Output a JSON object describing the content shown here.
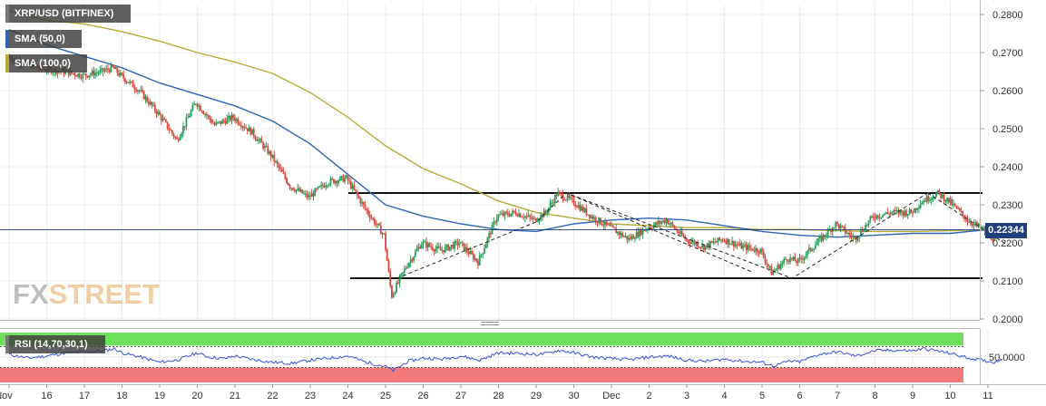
{
  "legend": {
    "pair": "XRP/USD (BITFINEX)",
    "sma50": "SMA (50,0)",
    "sma100": "SMA (100,0)",
    "rsi": "RSI (14,70,30,1)"
  },
  "colors": {
    "bull": "#2a9e5a",
    "bear": "#d94b3f",
    "sma50": "#2f64b4",
    "sma100": "#b6ab35",
    "rsi_line": "#3a52d8",
    "rsi_overbought": "#6de05c",
    "rsi_oversold": "#f07a7a",
    "last_price": "#1e3f7a"
  },
  "watermark": {
    "part1": "FX",
    "part2": "STREET"
  },
  "last_price_label": "0.22344",
  "chart_data": {
    "type": "candlestick",
    "title": "XRP/USD (BITFINEX)",
    "ylim": [
      0.2,
      0.282
    ],
    "y_ticks": [
      "0.2800",
      "0.2700",
      "0.2600",
      "0.2500",
      "0.2400",
      "0.2300",
      "0.2200",
      "0.2100",
      "0.2000"
    ],
    "x_ticks": [
      "Nov",
      "16",
      "17",
      "18",
      "19",
      "20",
      "21",
      "22",
      "23",
      "24",
      "25",
      "26",
      "27",
      "28",
      "29",
      "30",
      "Dec",
      "2",
      "3",
      "4",
      "5",
      "6",
      "7",
      "8",
      "9",
      "10",
      "11"
    ],
    "last_price": 0.22344,
    "price_path": [
      [
        15.0,
        0.269
      ],
      [
        15.8,
        0.266
      ],
      [
        16.5,
        0.265
      ],
      [
        17.0,
        0.264
      ],
      [
        17.5,
        0.265
      ],
      [
        17.8,
        0.266
      ],
      [
        18.0,
        0.264
      ],
      [
        18.5,
        0.26
      ],
      [
        19.0,
        0.254
      ],
      [
        19.5,
        0.247
      ],
      [
        20.0,
        0.257
      ],
      [
        20.5,
        0.251
      ],
      [
        21.0,
        0.253
      ],
      [
        21.5,
        0.249
      ],
      [
        22.0,
        0.243
      ],
      [
        22.5,
        0.235
      ],
      [
        23.0,
        0.232
      ],
      [
        23.5,
        0.236
      ],
      [
        24.0,
        0.237
      ],
      [
        24.5,
        0.229
      ],
      [
        25.0,
        0.222
      ],
      [
        25.2,
        0.206
      ],
      [
        25.6,
        0.214
      ],
      [
        26.0,
        0.22
      ],
      [
        26.5,
        0.218
      ],
      [
        27.0,
        0.22
      ],
      [
        27.5,
        0.215
      ],
      [
        28.0,
        0.227
      ],
      [
        28.5,
        0.228
      ],
      [
        29.0,
        0.226
      ],
      [
        29.3,
        0.228
      ],
      [
        29.6,
        0.233
      ],
      [
        30.0,
        0.231
      ],
      [
        30.5,
        0.227
      ],
      [
        31.0,
        0.224
      ],
      [
        31.5,
        0.221
      ],
      [
        32.0,
        0.224
      ],
      [
        32.5,
        0.226
      ],
      [
        33.0,
        0.221
      ],
      [
        33.5,
        0.219
      ],
      [
        34.0,
        0.221
      ],
      [
        34.5,
        0.219
      ],
      [
        35.0,
        0.218
      ],
      [
        35.3,
        0.212
      ],
      [
        35.7,
        0.216
      ],
      [
        36.0,
        0.215
      ],
      [
        36.5,
        0.22
      ],
      [
        37.0,
        0.225
      ],
      [
        37.5,
        0.221
      ],
      [
        38.0,
        0.227
      ],
      [
        38.5,
        0.228
      ],
      [
        39.0,
        0.228
      ],
      [
        39.3,
        0.231
      ],
      [
        39.7,
        0.233
      ],
      [
        40.0,
        0.231
      ],
      [
        40.5,
        0.226
      ],
      [
        41.0,
        0.223
      ],
      [
        41.2,
        0.221
      ],
      [
        41.4,
        0.2234
      ]
    ],
    "sma50": [
      [
        15.0,
        0.276
      ],
      [
        16.0,
        0.272
      ],
      [
        17.0,
        0.269
      ],
      [
        18.0,
        0.266
      ],
      [
        19.0,
        0.262
      ],
      [
        20.0,
        0.259
      ],
      [
        21.0,
        0.256
      ],
      [
        22.0,
        0.252
      ],
      [
        23.0,
        0.246
      ],
      [
        24.0,
        0.238
      ],
      [
        25.0,
        0.23
      ],
      [
        26.0,
        0.227
      ],
      [
        27.0,
        0.225
      ],
      [
        28.0,
        0.2235
      ],
      [
        29.0,
        0.223
      ],
      [
        30.0,
        0.225
      ],
      [
        31.0,
        0.226
      ],
      [
        32.0,
        0.2265
      ],
      [
        33.0,
        0.226
      ],
      [
        34.0,
        0.2245
      ],
      [
        35.0,
        0.223
      ],
      [
        36.0,
        0.222
      ],
      [
        37.0,
        0.2215
      ],
      [
        38.0,
        0.222
      ],
      [
        39.0,
        0.2225
      ],
      [
        40.0,
        0.2225
      ],
      [
        41.0,
        0.2235
      ],
      [
        41.4,
        0.224
      ]
    ],
    "sma100": [
      [
        15.0,
        0.281
      ],
      [
        16.0,
        0.2785
      ],
      [
        17.0,
        0.2775
      ],
      [
        18.0,
        0.2755
      ],
      [
        19.0,
        0.273
      ],
      [
        20.0,
        0.27
      ],
      [
        21.0,
        0.2675
      ],
      [
        22.0,
        0.2645
      ],
      [
        23.0,
        0.2595
      ],
      [
        24.0,
        0.253
      ],
      [
        25.0,
        0.2455
      ],
      [
        26.0,
        0.2395
      ],
      [
        27.0,
        0.2355
      ],
      [
        28.0,
        0.231
      ],
      [
        29.0,
        0.228
      ],
      [
        30.0,
        0.2265
      ],
      [
        31.0,
        0.225
      ],
      [
        32.0,
        0.2245
      ],
      [
        33.0,
        0.224
      ],
      [
        34.0,
        0.224
      ],
      [
        35.0,
        0.2235
      ],
      [
        36.0,
        0.2235
      ],
      [
        37.0,
        0.2232
      ],
      [
        38.0,
        0.223
      ],
      [
        39.0,
        0.223
      ],
      [
        40.0,
        0.2232
      ],
      [
        41.0,
        0.2234
      ],
      [
        41.4,
        0.2235
      ]
    ],
    "support_level": 0.2107,
    "resistance_level": 0.2331,
    "trend_lines": [
      [
        [
          25.3,
          0.2107
        ],
        [
          29.0,
          0.2255
        ],
        [
          29.8,
          0.2331
        ],
        [
          35.8,
          0.2107
        ],
        [
          39.4,
          0.2331
        ]
      ],
      [
        [
          29.8,
          0.2331
        ],
        [
          34.7,
          0.2125
        ]
      ],
      [
        [
          39.4,
          0.2331
        ],
        [
          41.5,
          0.2195
        ]
      ]
    ],
    "rsi": {
      "ylim": [
        0,
        100
      ],
      "overbought": 70,
      "oversold": 30,
      "tick": "50.0000",
      "path": [
        [
          15.0,
          55
        ],
        [
          15.5,
          48
        ],
        [
          16.0,
          52
        ],
        [
          16.5,
          58
        ],
        [
          17.0,
          60
        ],
        [
          17.5,
          62
        ],
        [
          17.8,
          66
        ],
        [
          18.0,
          58
        ],
        [
          18.5,
          50
        ],
        [
          19.0,
          40
        ],
        [
          19.5,
          45
        ],
        [
          20.0,
          58
        ],
        [
          20.3,
          50
        ],
        [
          20.7,
          47
        ],
        [
          21.0,
          52
        ],
        [
          21.5,
          45
        ],
        [
          22.0,
          40
        ],
        [
          22.5,
          38
        ],
        [
          23.0,
          44
        ],
        [
          23.5,
          48
        ],
        [
          24.0,
          52
        ],
        [
          24.5,
          40
        ],
        [
          25.0,
          32
        ],
        [
          25.2,
          24
        ],
        [
          25.6,
          42
        ],
        [
          26.0,
          48
        ],
        [
          26.5,
          46
        ],
        [
          27.0,
          52
        ],
        [
          27.5,
          44
        ],
        [
          28.0,
          58
        ],
        [
          28.5,
          57
        ],
        [
          29.0,
          55
        ],
        [
          29.3,
          57
        ],
        [
          29.6,
          63
        ],
        [
          30.0,
          58
        ],
        [
          30.5,
          50
        ],
        [
          31.0,
          47
        ],
        [
          31.5,
          45
        ],
        [
          32.0,
          50
        ],
        [
          32.5,
          52
        ],
        [
          33.0,
          44
        ],
        [
          33.5,
          42
        ],
        [
          34.0,
          46
        ],
        [
          34.5,
          42
        ],
        [
          35.0,
          40
        ],
        [
          35.3,
          33
        ],
        [
          35.7,
          42
        ],
        [
          36.0,
          41
        ],
        [
          36.5,
          55
        ],
        [
          37.0,
          60
        ],
        [
          37.5,
          52
        ],
        [
          38.0,
          62
        ],
        [
          38.5,
          63
        ],
        [
          39.0,
          62
        ],
        [
          39.3,
          66
        ],
        [
          39.7,
          61
        ],
        [
          40.0,
          57
        ],
        [
          40.5,
          48
        ],
        [
          41.0,
          42
        ],
        [
          41.2,
          40
        ],
        [
          41.4,
          49
        ]
      ]
    }
  }
}
